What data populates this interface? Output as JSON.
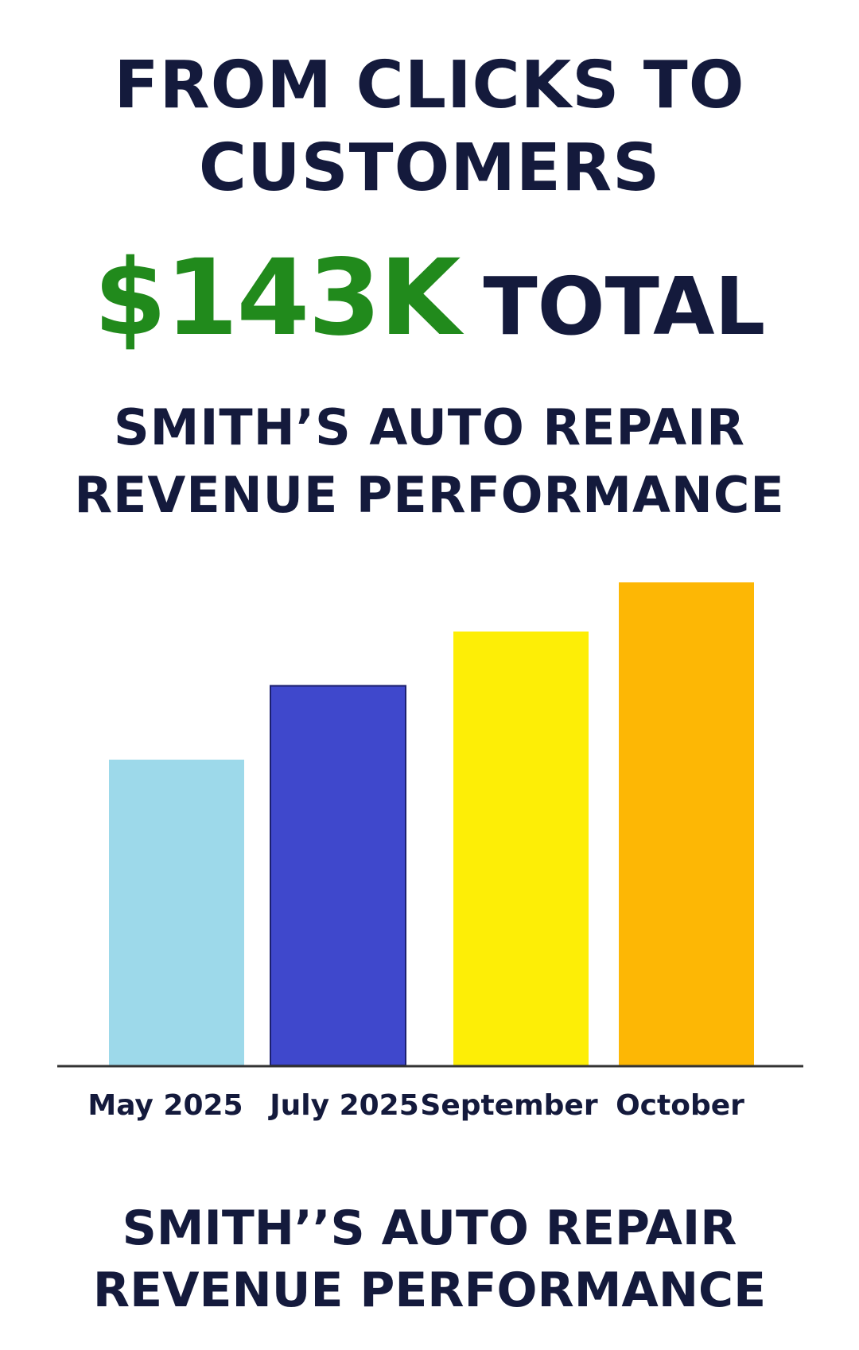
{
  "headline": {
    "line1": "FROM CLICKS TO",
    "line2": "CUSTOMERS"
  },
  "total": {
    "amount": "$143K",
    "word": "TOTAL"
  },
  "subtitle": {
    "line1": "SMITH’S AUTO REPAIR",
    "line2": "REVENUE PERFORMANCE"
  },
  "footer": {
    "line1": "SMITH’’S AUTO REPAIR",
    "line2": "REVENUE PERFORMANCE"
  },
  "colors": {
    "text": "#141a3c",
    "accent_green": "#218a1c",
    "axis": "#333333"
  },
  "chart_data": {
    "type": "bar",
    "title": "SMITH’S AUTO REPAIR REVENUE PERFORMANCE",
    "categories": [
      "May 2025",
      "July 2025",
      "September",
      "October"
    ],
    "values": [
      62,
      77,
      88,
      98
    ],
    "colors": [
      "#9dd9ea",
      "#3f48cc",
      "#fdee06",
      "#fdb705"
    ],
    "ylim": [
      0,
      100
    ],
    "grid": false,
    "legend": "none",
    "xlabel": "",
    "ylabel": ""
  }
}
